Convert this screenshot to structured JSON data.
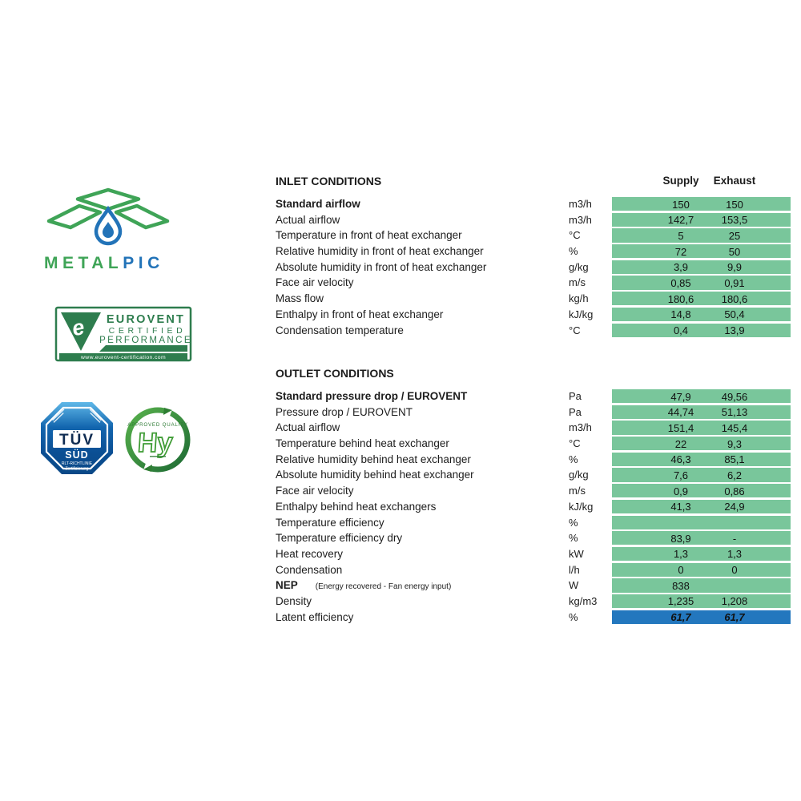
{
  "colors": {
    "bar_green": "#79C69B",
    "bar_blue": "#2377BE",
    "brand_green": "#3FA457",
    "brand_blue": "#2273B8",
    "eurovent_green": "#2E7D4E",
    "tuv_blue": "#0D5AA7",
    "hy_green": "#3F9C35"
  },
  "logos": {
    "metalpic": {
      "wordmark_metal": "METAL",
      "wordmark_pic": "PIC"
    },
    "eurovent": {
      "title": "EUROVENT",
      "certified": "CERTIFIED",
      "performance": "PERFORMANCE",
      "url": "www.eurovent-certification.com"
    },
    "tuv": {
      "brand": "TÜV",
      "region": "SÜD",
      "line1": "RLT-RICHTLINIE",
      "line2": "Zertifizierung"
    },
    "hy": {
      "approved": "APPROVED QUALITY",
      "mark": "Hy"
    }
  },
  "table": {
    "columns": {
      "supply": "Supply",
      "exhaust": "Exhaust"
    },
    "sections": [
      {
        "title": "INLET CONDITIONS",
        "rows": [
          {
            "label": "Standard airflow",
            "bold": true,
            "unit": "m3/h",
            "supply": "150",
            "exhaust": "150"
          },
          {
            "label": "Actual airflow",
            "unit": "m3/h",
            "supply": "142,7",
            "exhaust": "153,5"
          },
          {
            "label": "Temperature in front of heat exchanger",
            "unit": "°C",
            "supply": "5",
            "exhaust": "25"
          },
          {
            "label": "Relative humidity in front of heat exchanger",
            "unit": "%",
            "supply": "72",
            "exhaust": "50"
          },
          {
            "label": "Absolute humidity in front of heat exchanger",
            "unit": "g/kg",
            "supply": "3,9",
            "exhaust": "9,9"
          },
          {
            "label": "Face air velocity",
            "unit": "m/s",
            "supply": "0,85",
            "exhaust": "0,91"
          },
          {
            "label": "Mass flow",
            "unit": "kg/h",
            "supply": "180,6",
            "exhaust": "180,6"
          },
          {
            "label": "Enthalpy in front of heat exchanger",
            "unit": "kJ/kg",
            "supply": "14,8",
            "exhaust": "50,4"
          },
          {
            "label": "Condensation temperature",
            "unit": "°C",
            "supply": "0,4",
            "exhaust": "13,9"
          }
        ]
      },
      {
        "title": "OUTLET CONDITIONS",
        "rows": [
          {
            "label": "Standard pressure drop / EUROVENT",
            "bold": true,
            "unit": "Pa",
            "supply": "47,9",
            "exhaust": "49,56"
          },
          {
            "label": "Pressure drop / EUROVENT",
            "unit": "Pa",
            "supply": "44,74",
            "exhaust": "51,13"
          },
          {
            "label": "Actual airflow",
            "unit": "m3/h",
            "supply": "151,4",
            "exhaust": "145,4"
          },
          {
            "label": "Temperature behind heat exchanger",
            "unit": "°C",
            "supply": "22",
            "exhaust": "9,3"
          },
          {
            "label": "Relative humidity behind heat exchanger",
            "unit": "%",
            "supply": "46,3",
            "exhaust": "85,1"
          },
          {
            "label": "Absolute humidity behind heat exchanger",
            "unit": "g/kg",
            "supply": "7,6",
            "exhaust": "6,2"
          },
          {
            "label": "Face air velocity",
            "unit": "m/s",
            "supply": "0,9",
            "exhaust": "0,86"
          },
          {
            "label": "Enthalpy behind heat exchangers",
            "unit": "kJ/kg",
            "supply": "41,3",
            "exhaust": "24,9"
          },
          {
            "label": "Temperature efficiency",
            "unit": "%",
            "supply": "",
            "exhaust": ""
          },
          {
            "label": "Temperature efficiency dry",
            "unit": "%",
            "supply": "83,9",
            "exhaust": "-"
          },
          {
            "label": "Heat recovery",
            "unit": "kW",
            "supply": "1,3",
            "exhaust": "1,3"
          },
          {
            "label": "Condensation",
            "unit": "l/h",
            "supply": "0",
            "exhaust": "0"
          },
          {
            "label": "NEP",
            "bold": true,
            "note": "(Energy recovered - Fan energy input)",
            "unit": "W",
            "supply": "838",
            "exhaust": ""
          },
          {
            "label": "Density",
            "unit": "kg/m3",
            "supply": "1,235",
            "exhaust": "1,208"
          },
          {
            "label": "Latent efficiency",
            "unit": "%",
            "supply": "61,7",
            "exhaust": "61,7",
            "style": "blue"
          }
        ]
      }
    ]
  }
}
